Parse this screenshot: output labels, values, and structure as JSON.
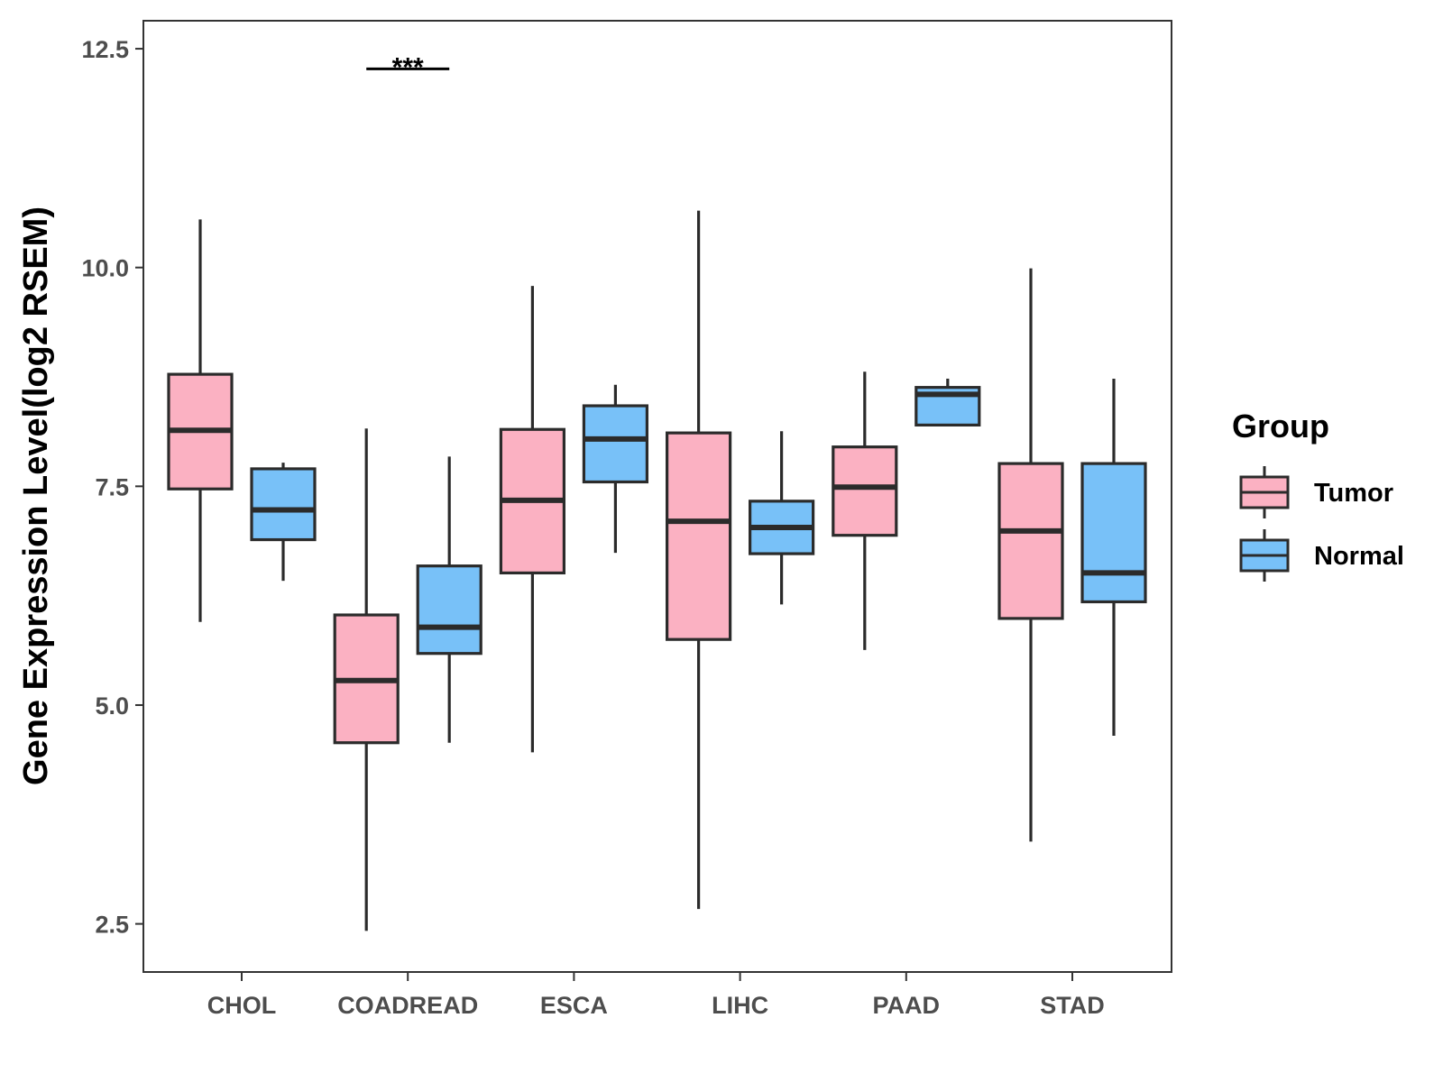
{
  "chart_data": {
    "type": "boxplot",
    "title": "",
    "xlabel": "",
    "ylabel": "Gene Expression Level(log2 RSEM)",
    "ylim": [
      1.95,
      12.82
    ],
    "yticks": [
      "2.5",
      "5.0",
      "7.5",
      "10.0",
      "12.5"
    ],
    "ytick_values": [
      2.5,
      5.0,
      7.5,
      10.0,
      12.5
    ],
    "categories": [
      "CHOL",
      "COADREAD",
      "ESCA",
      "LIHC",
      "PAAD",
      "STAD"
    ],
    "legend": {
      "title": "Group",
      "position": "right",
      "entries": [
        {
          "name": "Tumor",
          "color": "#FBB1C2"
        },
        {
          "name": "Normal",
          "color": "#78C1F8"
        }
      ]
    },
    "series": [
      {
        "name": "Tumor",
        "color": "#FBB1C2",
        "boxes": [
          {
            "min": 5.95,
            "q1": 7.47,
            "median": 8.14,
            "q3": 8.78,
            "max": 10.55
          },
          {
            "min": 2.42,
            "q1": 4.57,
            "median": 5.28,
            "q3": 6.03,
            "max": 8.16
          },
          {
            "min": 4.46,
            "q1": 6.51,
            "median": 7.34,
            "q3": 8.15,
            "max": 9.79
          },
          {
            "min": 2.67,
            "q1": 5.75,
            "median": 7.1,
            "q3": 8.11,
            "max": 10.65
          },
          {
            "min": 5.63,
            "q1": 6.94,
            "median": 7.49,
            "q3": 7.95,
            "max": 8.81
          },
          {
            "min": 3.44,
            "q1": 5.99,
            "median": 6.99,
            "q3": 7.76,
            "max": 9.99
          }
        ]
      },
      {
        "name": "Normal",
        "color": "#78C1F8",
        "boxes": [
          {
            "min": 6.42,
            "q1": 6.89,
            "median": 7.23,
            "q3": 7.7,
            "max": 7.77
          },
          {
            "min": 4.57,
            "q1": 5.59,
            "median": 5.89,
            "q3": 6.59,
            "max": 7.84
          },
          {
            "min": 6.74,
            "q1": 7.55,
            "median": 8.04,
            "q3": 8.42,
            "max": 8.66
          },
          {
            "min": 6.15,
            "q1": 6.73,
            "median": 7.03,
            "q3": 7.33,
            "max": 8.13
          },
          {
            "min": 8.2,
            "q1": 8.2,
            "median": 8.55,
            "q3": 8.63,
            "max": 8.73
          },
          {
            "min": 4.65,
            "q1": 6.18,
            "median": 6.51,
            "q3": 7.76,
            "max": 8.73
          }
        ]
      }
    ],
    "annotations": [
      {
        "category": "COADREAD",
        "text": "***",
        "y": 12.27
      }
    ]
  }
}
